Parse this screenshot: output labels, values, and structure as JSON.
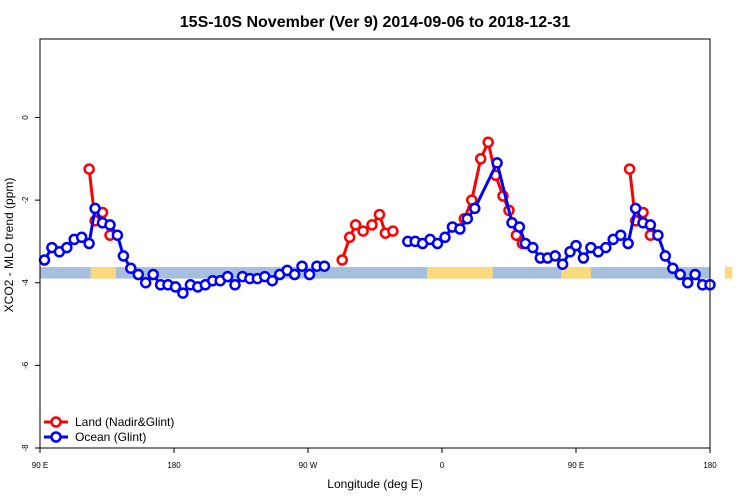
{
  "chart_data": {
    "type": "line",
    "title": "15S-10S November (Ver 9)   2014-09-06 to 2018-12-31",
    "xlabel": "Longitude (deg E)",
    "ylabel": "XCO2 - MLO trend (ppm)",
    "x_ticks": [
      {
        "value": 90,
        "label": "90 E"
      },
      {
        "value": 180,
        "label": "180"
      },
      {
        "value": 270,
        "label": "90 W"
      },
      {
        "value": 360,
        "label": "0"
      },
      {
        "value": 450,
        "label": "90 E"
      },
      {
        "value": 540,
        "label": "180"
      }
    ],
    "y_ticks": [
      {
        "value": 0,
        "label": "0"
      },
      {
        "value": -2,
        "label": "-2"
      },
      {
        "value": -4,
        "label": "-4"
      },
      {
        "value": -6,
        "label": "-6"
      },
      {
        "value": -8,
        "label": "-8"
      }
    ],
    "xlim": [
      90,
      540
    ],
    "ylim": [
      -8,
      1.9
    ],
    "grid": false,
    "legend_position": "bottom-left",
    "land_band": {
      "y_range": [
        -3.9,
        -3.62
      ],
      "ocean_color": "#a7bfde",
      "land_color": "#fcd97b",
      "land_segments": [
        [
          124,
          141
        ],
        [
          350,
          394
        ],
        [
          440,
          460
        ],
        [
          550,
          555
        ],
        [
          613,
          618
        ],
        [
          640,
          650
        ]
      ]
    },
    "series": [
      {
        "name": "Land (Nadir&Glint)",
        "color": "#ff0000",
        "segments": [
          [
            [
              123,
              -1.25
            ],
            [
              127,
              -2.5
            ],
            [
              132,
              -2.3
            ],
            [
              137,
              -2.85
            ]
          ],
          [
            [
              293,
              -3.45
            ],
            [
              298,
              -2.9
            ],
            [
              302,
              -2.6
            ],
            [
              307,
              -2.75
            ],
            [
              313,
              -2.6
            ],
            [
              318,
              -2.35
            ],
            [
              322,
              -2.8
            ],
            [
              327,
              -2.75
            ]
          ],
          [
            [
              375,
              -2.45
            ],
            [
              380,
              -2.0
            ],
            [
              386,
              -1.0
            ],
            [
              391,
              -0.6
            ],
            [
              396,
              -1.4
            ],
            [
              401,
              -1.9
            ],
            [
              405,
              -2.25
            ],
            [
              410,
              -2.85
            ],
            [
              414,
              -3.05
            ]
          ],
          [
            [
              486,
              -1.25
            ],
            [
              490,
              -2.5
            ],
            [
              495,
              -2.3
            ],
            [
              500,
              -2.85
            ]
          ]
        ]
      },
      {
        "name": "Ocean (Glint)",
        "color": "#0000ff",
        "segments": [
          [
            [
              93,
              -3.45
            ],
            [
              98,
              -3.15
            ],
            [
              103,
              -3.25
            ],
            [
              108,
              -3.15
            ],
            [
              113,
              -2.95
            ],
            [
              118,
              -2.9
            ],
            [
              123,
              -3.05
            ],
            [
              127,
              -2.2
            ],
            [
              132,
              -2.55
            ],
            [
              137,
              -2.6
            ],
            [
              142,
              -2.85
            ],
            [
              146,
              -3.35
            ],
            [
              151,
              -3.65
            ],
            [
              156,
              -3.8
            ],
            [
              161,
              -4.0
            ],
            [
              166,
              -3.8
            ],
            [
              171,
              -4.05
            ],
            [
              176,
              -4.05
            ],
            [
              181,
              -4.1
            ],
            [
              186,
              -4.25
            ],
            [
              191,
              -4.05
            ],
            [
              196,
              -4.1
            ],
            [
              201,
              -4.05
            ],
            [
              206,
              -3.95
            ],
            [
              211,
              -3.95
            ],
            [
              216,
              -3.85
            ],
            [
              221,
              -4.05
            ],
            [
              226,
              -3.85
            ],
            [
              231,
              -3.9
            ],
            [
              236,
              -3.9
            ],
            [
              241,
              -3.85
            ],
            [
              246,
              -3.95
            ],
            [
              251,
              -3.8
            ],
            [
              256,
              -3.7
            ],
            [
              261,
              -3.8
            ],
            [
              266,
              -3.6
            ],
            [
              271,
              -3.8
            ],
            [
              276,
              -3.6
            ],
            [
              281,
              -3.6
            ]
          ],
          [
            [
              337,
              -3.0
            ],
            [
              342,
              -3.0
            ],
            [
              347,
              -3.05
            ],
            [
              352,
              -2.95
            ],
            [
              357,
              -3.05
            ],
            [
              362,
              -2.9
            ],
            [
              367,
              -2.65
            ],
            [
              372,
              -2.7
            ],
            [
              377,
              -2.45
            ],
            [
              382,
              -2.2
            ],
            [
              397,
              -1.1
            ],
            [
              407,
              -2.55
            ],
            [
              412,
              -2.65
            ],
            [
              416,
              -3.05
            ],
            [
              421,
              -3.15
            ],
            [
              426,
              -3.4
            ],
            [
              431,
              -3.4
            ],
            [
              436,
              -3.35
            ],
            [
              441,
              -3.55
            ],
            [
              446,
              -3.25
            ],
            [
              450,
              -3.1
            ],
            [
              455,
              -3.4
            ],
            [
              460,
              -3.15
            ],
            [
              465,
              -3.25
            ],
            [
              470,
              -3.15
            ],
            [
              475,
              -2.95
            ],
            [
              480,
              -2.85
            ],
            [
              485,
              -3.05
            ],
            [
              490,
              -2.2
            ],
            [
              495,
              -2.55
            ],
            [
              500,
              -2.6
            ],
            [
              505,
              -2.85
            ],
            [
              510,
              -3.35
            ],
            [
              515,
              -3.65
            ],
            [
              520,
              -3.8
            ],
            [
              525,
              -4.0
            ],
            [
              530,
              -3.8
            ],
            [
              535,
              -4.05
            ],
            [
              540,
              -4.05
            ]
          ]
        ]
      }
    ]
  }
}
